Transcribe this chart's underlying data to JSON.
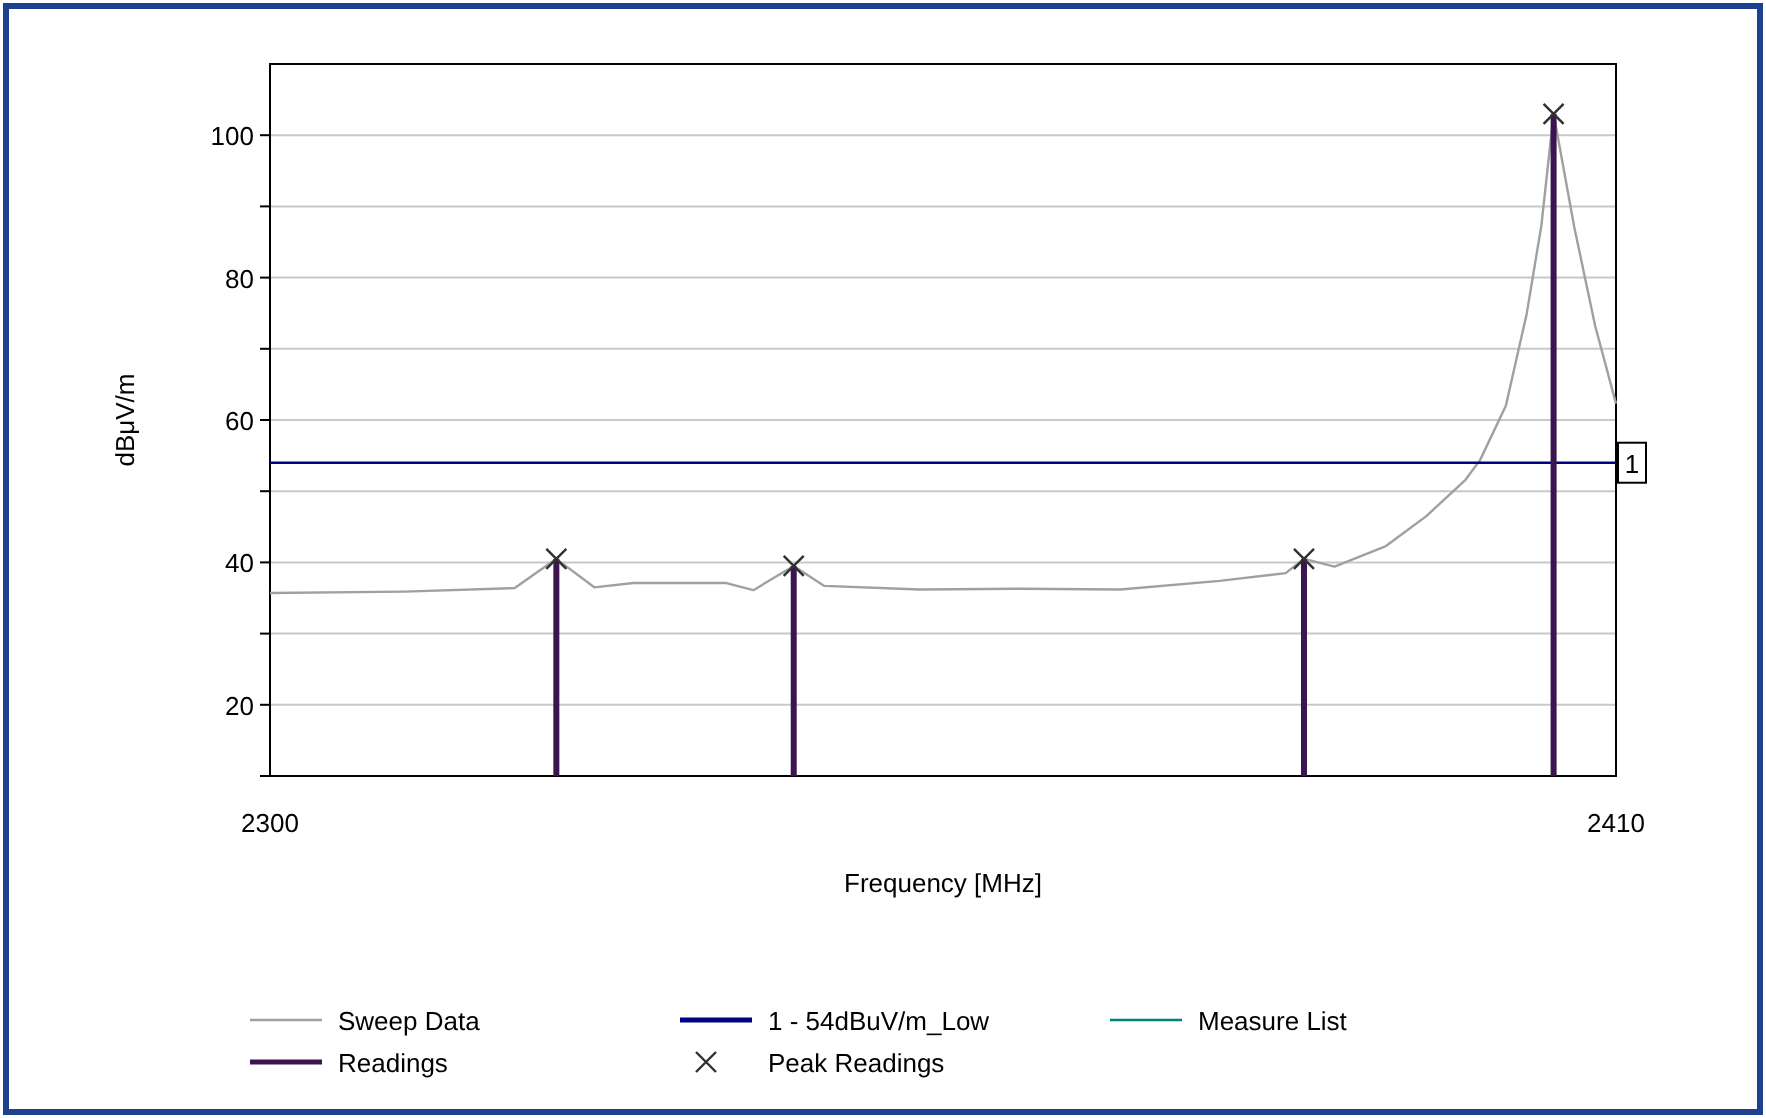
{
  "chart_data": {
    "type": "line",
    "xlabel": "Frequency [MHz]",
    "ylabel": "dBμV/m",
    "xlim": [
      2300,
      2410
    ],
    "xticks": [
      2300,
      2410
    ],
    "ylim": [
      10,
      110
    ],
    "yticks": [
      {
        "value": 10,
        "label": null
      },
      20,
      {
        "value": 30,
        "label": null
      },
      40,
      {
        "value": 50,
        "label": null
      },
      60,
      {
        "value": 70,
        "label": null
      },
      80,
      {
        "value": 90,
        "label": null
      },
      100
    ],
    "grid": "y",
    "legend": "bottom",
    "annotations": [
      {
        "text": "1",
        "x": 2410,
        "y": 54
      }
    ],
    "series": [
      {
        "name": "Sweep Data",
        "color": "#a0a0a0",
        "marker": "none",
        "x": [
          2300,
          2311,
          2320,
          2323.4,
          2326.5,
          2329.7,
          2337.3,
          2339.5,
          2342.8,
          2345.3,
          2353.1,
          2361.3,
          2369.5,
          2377.6,
          2383,
          2384.5,
          2387,
          2391.2,
          2394.5,
          2397.7,
          2398.9,
          2401,
          2402.7,
          2403.9,
          2404.9,
          2406.6,
          2408.3,
          2410
        ],
        "values": [
          35.7,
          35.9,
          36.4,
          40.5,
          36.5,
          37.1,
          37.1,
          36.1,
          39.5,
          36.7,
          36.2,
          36.3,
          36.2,
          37.4,
          38.5,
          40.5,
          39.4,
          42.3,
          46.5,
          51.6,
          54.4,
          62,
          74.9,
          87.3,
          103,
          87,
          73.2,
          62.3
        ]
      },
      {
        "name": "1 - 54dBuV/m_Low",
        "color": "#000080",
        "marker": "none",
        "x": [
          2300,
          2410
        ],
        "values": [
          54,
          54
        ]
      },
      {
        "name": "Measure List",
        "color": "#008080"
      },
      {
        "name": "Readings",
        "type": "bar",
        "color": "#3c1450",
        "x": [
          2323.4,
          2342.8,
          2384.5,
          2404.9
        ],
        "values": [
          40.5,
          39.5,
          40.5,
          103
        ]
      },
      {
        "name": "Peak Readings",
        "type": "scatter",
        "color": "#303030",
        "marker": "cross",
        "x": [
          2323.4,
          2342.8,
          2384.5,
          2404.9
        ],
        "values": [
          40.5,
          39.5,
          40.5,
          103
        ]
      }
    ]
  }
}
